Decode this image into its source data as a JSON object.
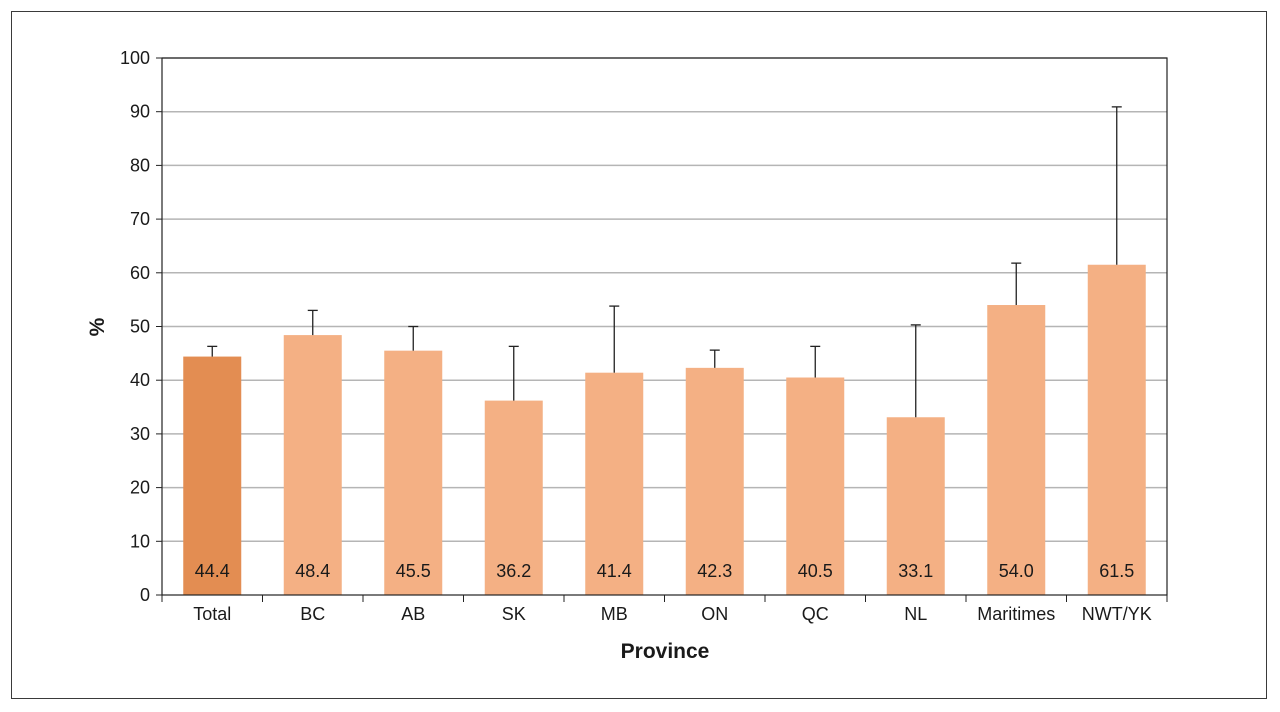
{
  "chart_data": {
    "type": "bar",
    "title": "",
    "xlabel": "Province",
    "ylabel": "%",
    "ylim": [
      0,
      100
    ],
    "yticks": [
      0,
      10,
      20,
      30,
      40,
      50,
      60,
      70,
      80,
      90,
      100
    ],
    "grid": true,
    "legend": "none",
    "categories": [
      "Total",
      "BC",
      "AB",
      "SK",
      "MB",
      "ON",
      "QC",
      "NL",
      "Maritimes",
      "NWT/YK"
    ],
    "values": [
      44.4,
      48.4,
      45.5,
      36.2,
      41.4,
      42.3,
      40.5,
      33.1,
      54.0,
      61.5
    ],
    "value_labels": [
      "44.4",
      "48.4",
      "45.5",
      "36.2",
      "41.4",
      "42.3",
      "40.5",
      "33.1",
      "54.0",
      "61.5"
    ],
    "error_upper": [
      46.3,
      53.0,
      50.0,
      46.3,
      53.8,
      45.6,
      46.3,
      50.3,
      61.8,
      90.9
    ],
    "colors": {
      "highlight": "#e38d52",
      "bar": "#f4b084",
      "grid": "#b5b5b5",
      "axis": "#222222",
      "error": "#222222"
    },
    "highlight_index": 0
  }
}
